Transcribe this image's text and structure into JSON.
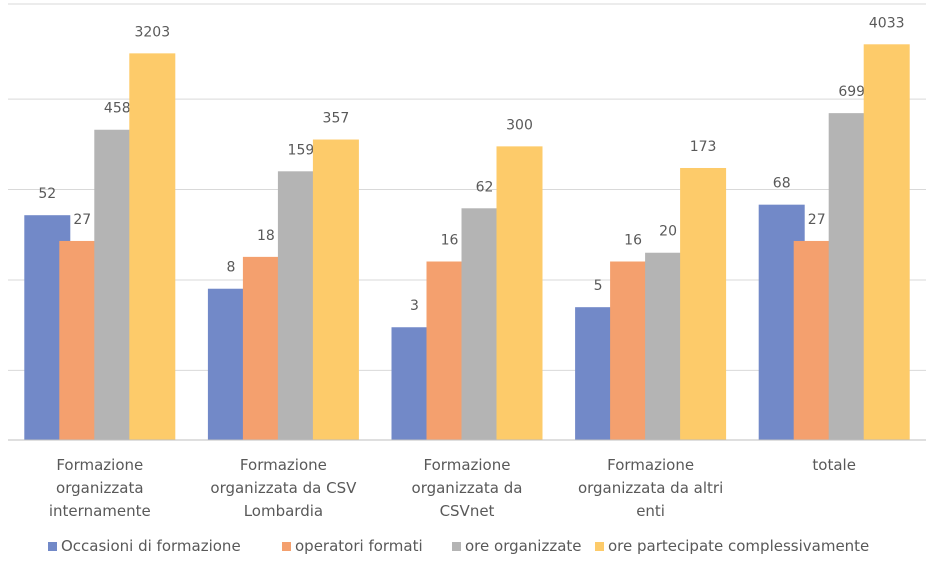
{
  "chart_data": {
    "type": "bar",
    "categories": [
      [
        "Formazione",
        "organizzata",
        "internamente"
      ],
      [
        "Formazione",
        "organizzata da CSV",
        "Lombardia"
      ],
      [
        "Formazione",
        "organizzata da",
        "CSVnet"
      ],
      [
        "Formazione",
        "organizzata da altri",
        "enti"
      ],
      [
        "totale"
      ]
    ],
    "series": [
      {
        "name": "Occasioni di formazione",
        "color": "#7289c8",
        "values": [
          52,
          8,
          3,
          5,
          68
        ]
      },
      {
        "name": "operatori formati",
        "color": "#f4a06e",
        "values": [
          27,
          18,
          16,
          16,
          27
        ]
      },
      {
        "name": "ore organizzate",
        "color": "#b4b4b4",
        "values": [
          458,
          159,
          62,
          20,
          699
        ]
      },
      {
        "name": "ore partecipate complessivamente",
        "color": "#fdcb6a",
        "values": [
          3203,
          357,
          300,
          173,
          4033
        ]
      }
    ],
    "axis": "log",
    "grid": true,
    "legend_position": "bottom"
  }
}
